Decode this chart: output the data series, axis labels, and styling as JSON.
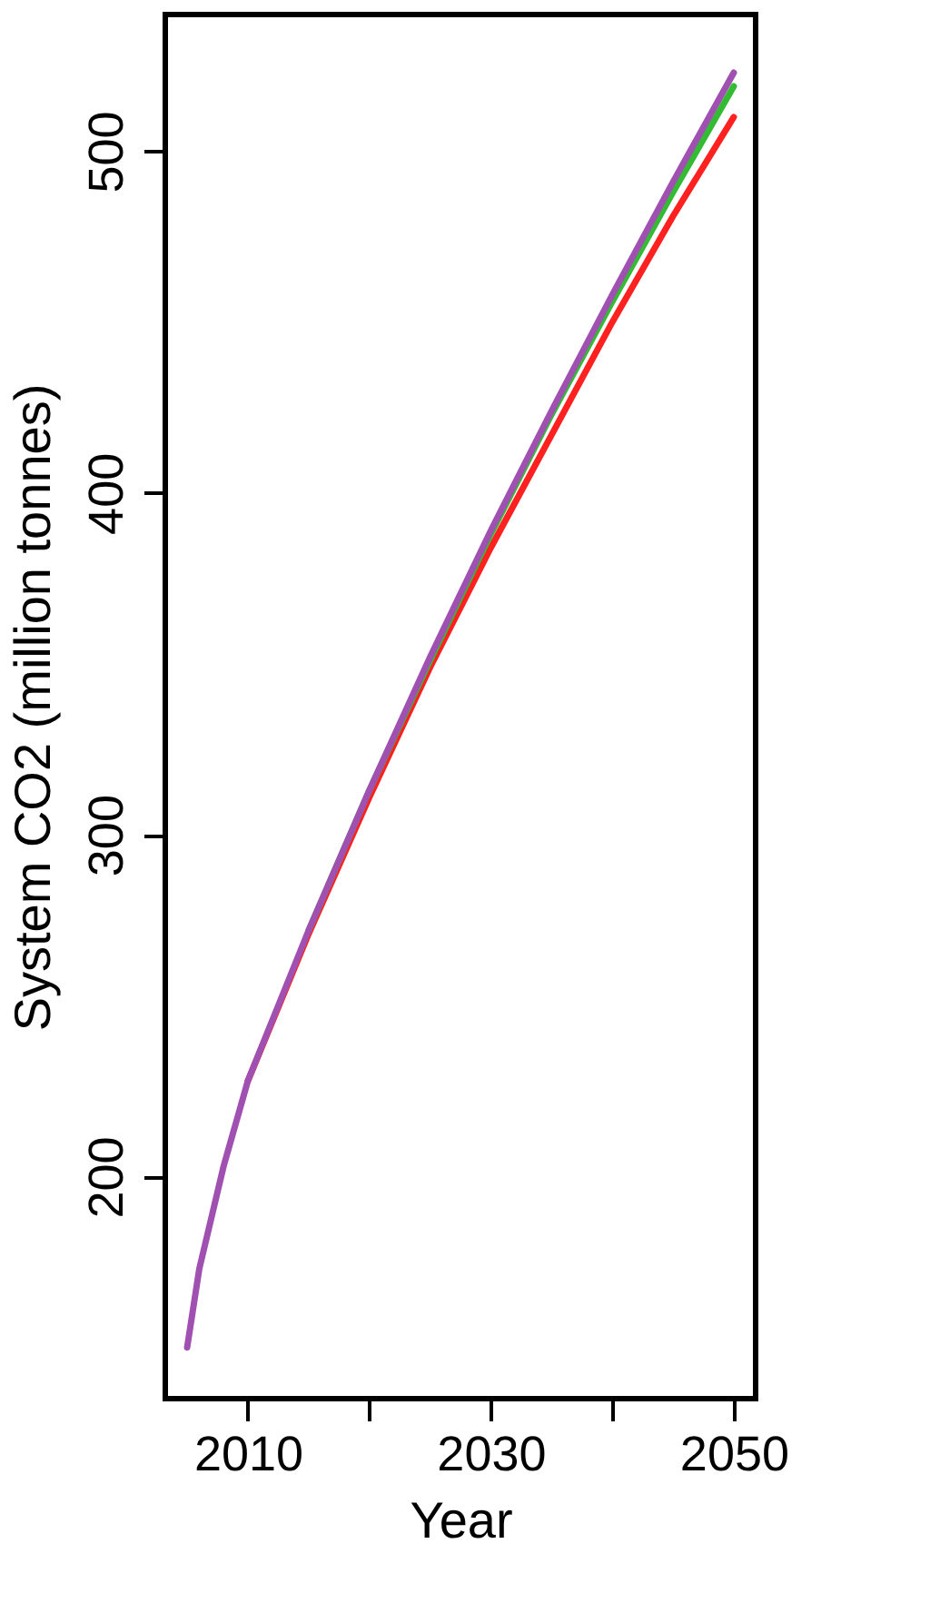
{
  "chart_data": {
    "type": "line",
    "xlabel": "Year",
    "ylabel": "System CO2 (million tonnes)",
    "x": [
      2005,
      2006,
      2008,
      2010,
      2015,
      2020,
      2025,
      2030,
      2035,
      2040,
      2045,
      2050
    ],
    "series": [
      {
        "color": "#ff2020",
        "values": [
          null,
          null,
          null,
          228,
          271,
          311,
          349,
          384,
          417,
          450,
          481,
          510
        ]
      },
      {
        "color": "#33bb33",
        "values": [
          null,
          null,
          null,
          null,
          272,
          313,
          351,
          388,
          423,
          456,
          488,
          519
        ]
      },
      {
        "color": "#a050b0",
        "values": [
          150,
          173,
          203,
          228,
          272,
          313,
          352,
          389,
          424,
          458,
          491,
          523
        ]
      }
    ],
    "xlim": [
      2003.2,
      2051.8
    ],
    "ylim": [
      135,
      540
    ],
    "xticks": [
      2010,
      {
        "value": 2020,
        "label": null
      },
      2030,
      {
        "value": 2040,
        "label": null
      },
      2050
    ],
    "yticks": [
      200,
      300,
      400,
      500
    ],
    "grid": false,
    "legend": false,
    "marker": "none",
    "line_style": "solid"
  }
}
